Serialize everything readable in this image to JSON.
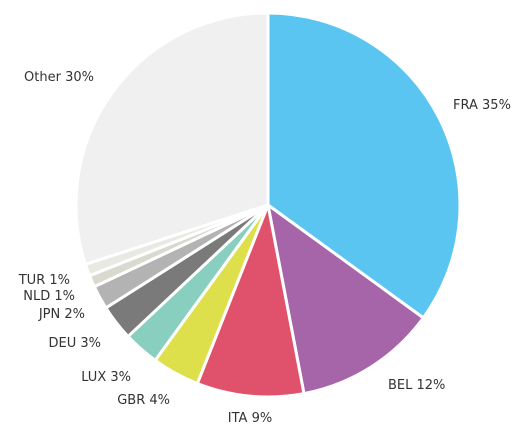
{
  "chart_data": {
    "type": "pie",
    "categories": [
      "FRA",
      "BEL",
      "ITA",
      "GBR",
      "LUX",
      "DEU",
      "JPN",
      "NLD",
      "TUR",
      "Other"
    ],
    "values": [
      35,
      12,
      9,
      4,
      3,
      3,
      2,
      1,
      1,
      30
    ],
    "value_labels": [
      "35%",
      "12%",
      "9%",
      "4%",
      "3%",
      "3%",
      "2%",
      "1%",
      "1%",
      "30%"
    ],
    "colors": [
      "#5bc5f2",
      "#a565a8",
      "#e0526b",
      "#dde04a",
      "#88cfc0",
      "#7a7a7a",
      "#b3b3b3",
      "#d9d9cf",
      "#e9e9e4",
      "#f0f0f0"
    ]
  }
}
